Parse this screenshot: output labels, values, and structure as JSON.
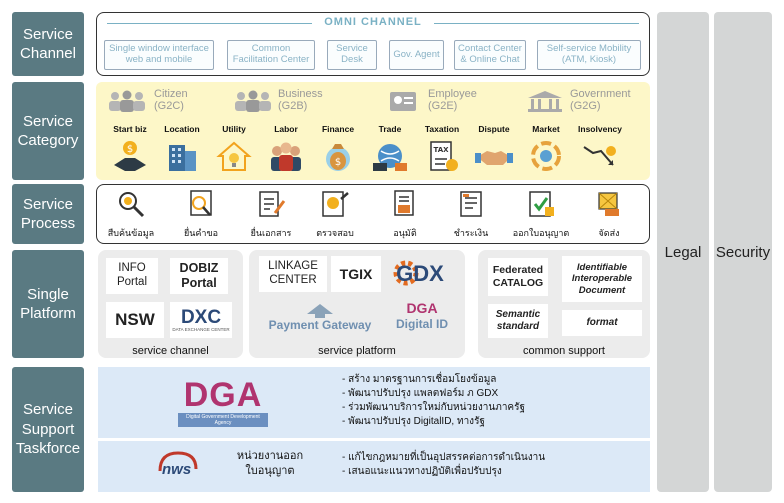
{
  "rows": {
    "channel": "Service\nChannel",
    "category": "Service\nCategory",
    "process": "Service\nProcess",
    "platform": "Single\nPlatform",
    "support": "Service\nSupport\nTaskforce"
  },
  "side": {
    "legal": "Legal",
    "security": "Security"
  },
  "omni_title": "OMNI CHANNEL",
  "channels": [
    "Single window interface\nweb and mobile",
    "Common\nFacilitation Center",
    "Service\nDesk",
    "Gov. Agent",
    "Contact Center\n& Online Chat",
    "Self-service Mobility\n(ATM, Kiosk)"
  ],
  "groups": [
    {
      "name": "Citizen",
      "code": "(G2C)"
    },
    {
      "name": "Business",
      "code": "(G2B)"
    },
    {
      "name": "Employee",
      "code": "(G2E)"
    },
    {
      "name": "Government",
      "code": "(G2G)"
    }
  ],
  "categories": [
    "Start biz",
    "Location",
    "Utility",
    "Labor",
    "Finance",
    "Trade",
    "Taxation",
    "Dispute",
    "Market",
    "Insolvency"
  ],
  "processes": [
    "สืบค้นข้อมูล",
    "ยื่นคำขอ",
    "ยื่นเอกสาร",
    "ตรวจสอบ",
    "อนุมัติ",
    "ชำระเงิน",
    "ออกใบอนุญาต",
    "จัดส่ง"
  ],
  "platform": {
    "channel": {
      "caption": "service channel",
      "info": "INFO\nPortal",
      "dobiz": "DOBIZ\nPortal",
      "nsw": "NSW",
      "dxc": "DXC",
      "dxc_sub": "DATA EXCHANGE CENTER"
    },
    "service": {
      "caption": "service platform",
      "linkage": "LINKAGE\nCENTER",
      "tgix": "TGIX",
      "gdx": "GDX",
      "pg": "Payment Gateway",
      "dga": "DGA",
      "did": "Digital ID"
    },
    "common": {
      "caption": "common support",
      "catalog": "Federated\nCATALOG",
      "iid": "Identifiable\nInteroperable\nDocument",
      "semantic": "Semantic\nstandard",
      "format": "format"
    }
  },
  "support": {
    "dga_logo": "DGA",
    "dga_sub": "Digital Government Development Agency",
    "dga_items": [
      "- สร้าง มาตรฐานการเชื่อมโยงข้อมูล",
      "- พัฒนาปรับปรุง แพลตฟอร์ม ภ GDX",
      "- ร่วมพัฒนาบริการใหม่กับหน่วยงานภาครัฐ",
      "- พัฒนาปรับปรุง DigitalID, ทางรัฐ"
    ],
    "ops_logo": "nws",
    "ops_label": "หน่วยงานออก\nใบอนุญาต",
    "ops_items": [
      "- แก้ไขกฎหมายที่เป็นอุปสรรคต่อการดำเนินงาน",
      "- เสนอแนะแนวทางปฏิบัติเพื่อปรับปรุง"
    ]
  },
  "colors": {
    "label_bg": "#5a7a82",
    "category_bg": "#fdf7c8",
    "support_bg": "#dce9f7",
    "dga_magenta": "#b0346f",
    "gdx_orange": "#e36b20"
  }
}
